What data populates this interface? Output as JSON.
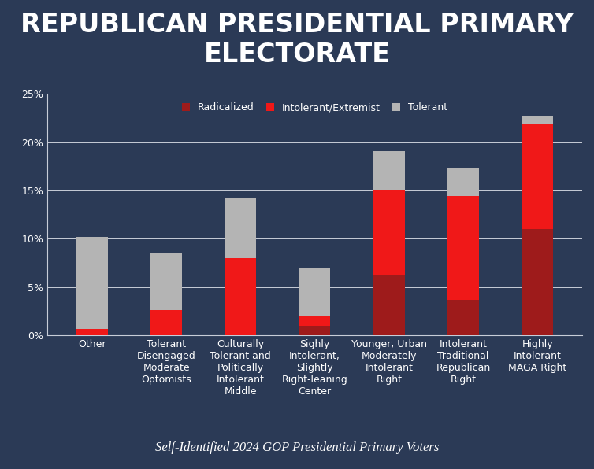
{
  "chart_data": {
    "type": "bar",
    "stacked": true,
    "title": "REPUBLICAN PRESIDENTIAL PRIMARY ELECTORATE",
    "subtitle": "Self-Identified 2024 GOP Presidential Primary Voters",
    "categories": [
      "Other",
      "Tolerant Disengaged Moderate Optomists",
      "Culturally Tolerant and Politically Intolerant Middle",
      "Sighly Intolerant, Slightly Right-leaning Center",
      "Younger, Urban Moderately Intolerant Right",
      "Intolerant Traditional Republican Right",
      "Highly Intolerant MAGA Right"
    ],
    "series": [
      {
        "name": "Radicalized",
        "color": "#9e1b1b",
        "values": [
          0,
          0,
          0,
          1.0,
          6.3,
          3.7,
          11.0
        ]
      },
      {
        "name": "Intolerant/Extremist",
        "color": "#f01818",
        "values": [
          0.7,
          2.6,
          8.0,
          1.0,
          8.8,
          10.7,
          10.8
        ]
      },
      {
        "name": "Tolerant",
        "color": "#b4b4b4",
        "values": [
          9.5,
          5.9,
          6.3,
          5.0,
          4.0,
          3.0,
          0.9
        ]
      }
    ],
    "ylim": [
      0,
      25
    ],
    "yticks": [
      {
        "value": 0,
        "label": "0%"
      },
      {
        "value": 5,
        "label": "5%"
      },
      {
        "value": 10,
        "label": "10%"
      },
      {
        "value": 15,
        "label": "15%"
      },
      {
        "value": 20,
        "label": "20%"
      },
      {
        "value": 25,
        "label": "25%"
      }
    ],
    "grid": true,
    "legend": "upper center"
  }
}
